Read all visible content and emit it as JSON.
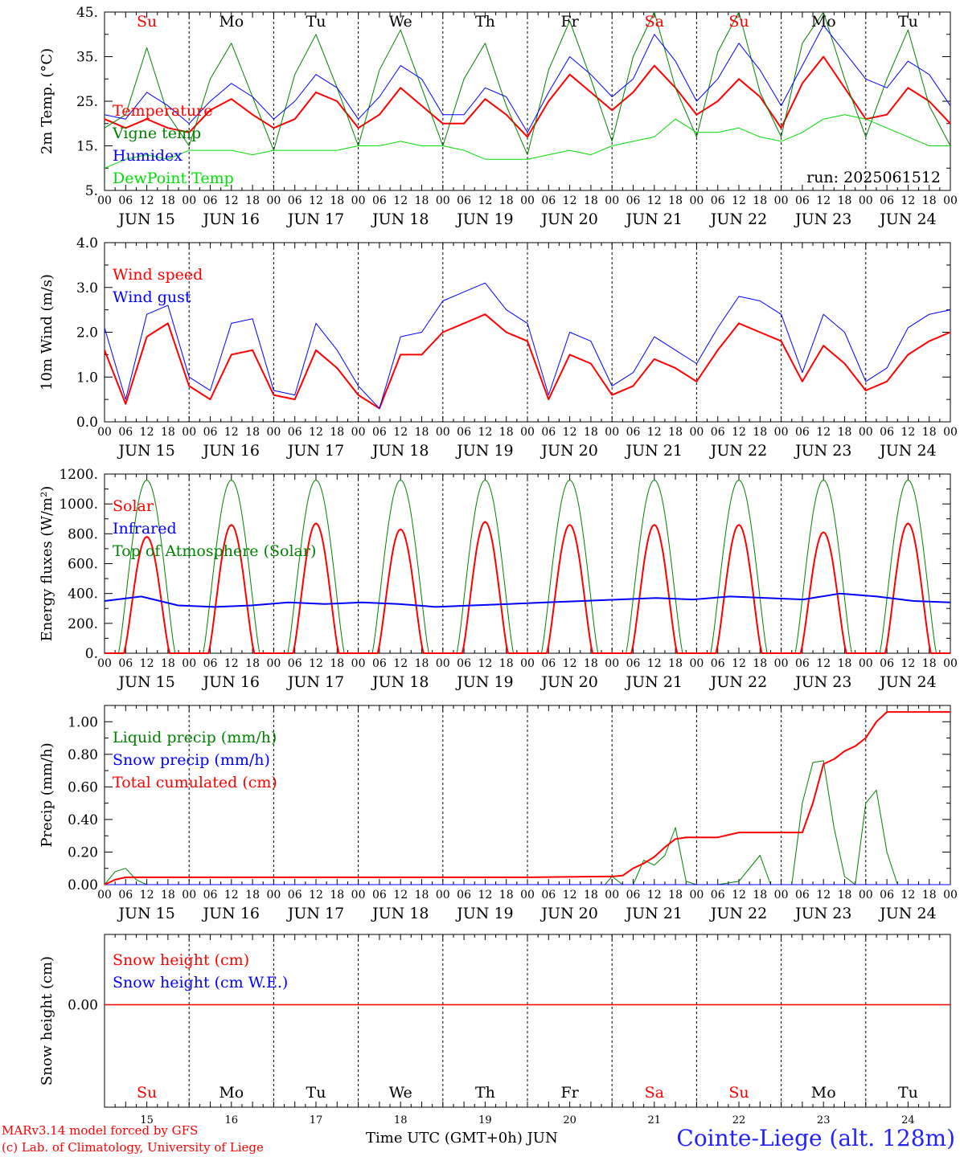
{
  "footer": {
    "model": "MARv3.14 model forced by GFS",
    "lab": "(c) Lab. of Climatology, University of Liege",
    "xlabel": "Time UTC (GMT+0h) JUN",
    "station": "Cointe-Liege (alt. 128m)"
  },
  "colors": {
    "red": "#ff0000",
    "green": "#008000",
    "blue": "#0000ff",
    "lime": "#00dd00",
    "grid": "#000000"
  },
  "chart_data": [
    {
      "type": "line",
      "ylabel": "2m Temp. (°C)",
      "ylim": [
        5,
        45
      ],
      "yticks": [
        "5.",
        "15.",
        "25.",
        "35.",
        "45."
      ],
      "annotation": "run: 2025061512",
      "days_top": [
        {
          "label": "Su",
          "color": "red"
        },
        {
          "label": "Mo",
          "color": "black"
        },
        {
          "label": "Tu",
          "color": "black"
        },
        {
          "label": "We",
          "color": "black"
        },
        {
          "label": "Th",
          "color": "black"
        },
        {
          "label": "Fr",
          "color": "black"
        },
        {
          "label": "Sa",
          "color": "red"
        },
        {
          "label": "Su",
          "color": "red"
        },
        {
          "label": "Mo",
          "color": "black"
        },
        {
          "label": "Tu",
          "color": "black"
        }
      ],
      "x_hours": [
        0,
        6,
        12,
        18,
        24,
        30,
        36,
        42,
        48,
        54,
        60,
        66,
        72,
        78,
        84,
        90,
        96,
        102,
        108,
        114,
        120,
        126,
        132,
        138,
        144,
        150,
        156,
        162,
        168,
        174,
        180,
        186,
        192,
        198,
        204,
        210,
        216,
        222,
        228,
        234,
        240
      ],
      "series": [
        {
          "name": "Temperature",
          "color": "red",
          "width": 2,
          "values": [
            21,
            19,
            21,
            19,
            18,
            23,
            25.5,
            22,
            19,
            21,
            27,
            25,
            19,
            22,
            28,
            24,
            20,
            20,
            25.5,
            22,
            17,
            25,
            31,
            27,
            23,
            27,
            33,
            28,
            22,
            25,
            30,
            26,
            19,
            29,
            35,
            28,
            21,
            22,
            28,
            25,
            20
          ]
        },
        {
          "name": "Vigne temp",
          "color": "green",
          "width": 1,
          "values": [
            19,
            22,
            37,
            22,
            15,
            30,
            38,
            26,
            14,
            31,
            40,
            28,
            15,
            32,
            41,
            28,
            15,
            30,
            38,
            24,
            13,
            32,
            43,
            30,
            16,
            35,
            46,
            28,
            17,
            36,
            47,
            27,
            17,
            38,
            47,
            30,
            17,
            30,
            41,
            24,
            15
          ]
        },
        {
          "name": "Humidex",
          "color": "blue",
          "width": 1,
          "values": [
            22,
            21,
            27,
            24,
            20,
            25,
            29,
            26,
            21,
            25,
            31,
            28,
            21,
            26,
            33,
            30,
            22,
            22,
            28,
            26,
            18,
            27,
            35,
            31,
            26,
            30,
            40,
            34,
            25,
            30,
            38,
            32,
            24,
            33,
            42,
            36,
            30,
            28,
            34,
            31,
            24
          ]
        },
        {
          "name": "DewPoint Temp",
          "color": "lime",
          "width": 1,
          "values": [
            10,
            12,
            13,
            12,
            14,
            14,
            14,
            13,
            14,
            14,
            14,
            14,
            15,
            15,
            16,
            15,
            15,
            14,
            12,
            12,
            12,
            13,
            14,
            13,
            15,
            16,
            17,
            21,
            18,
            18,
            19,
            17,
            16,
            18,
            21,
            22,
            21,
            19,
            17,
            15,
            15
          ]
        }
      ]
    },
    {
      "type": "line",
      "ylabel": "10m Wind (m/s)",
      "ylim": [
        0,
        4
      ],
      "yticks": [
        "0.0",
        "1.0",
        "2.0",
        "3.0",
        "4.0"
      ],
      "x_hours": [
        0,
        6,
        12,
        18,
        24,
        30,
        36,
        42,
        48,
        54,
        60,
        66,
        72,
        78,
        84,
        90,
        96,
        102,
        108,
        114,
        120,
        126,
        132,
        138,
        144,
        150,
        156,
        162,
        168,
        174,
        180,
        186,
        192,
        198,
        204,
        210,
        216,
        222,
        228,
        234,
        240
      ],
      "series": [
        {
          "name": "Wind speed",
          "color": "red",
          "width": 2,
          "values": [
            1.6,
            0.4,
            1.9,
            2.2,
            0.8,
            0.5,
            1.5,
            1.6,
            0.6,
            0.5,
            1.6,
            1.2,
            0.6,
            0.3,
            1.5,
            1.5,
            2.0,
            2.2,
            2.4,
            2.0,
            1.8,
            0.5,
            1.5,
            1.3,
            0.6,
            0.8,
            1.4,
            1.2,
            0.9,
            1.6,
            2.2,
            2.0,
            1.8,
            0.9,
            1.7,
            1.3,
            0.7,
            0.9,
            1.5,
            1.8,
            2.0
          ]
        },
        {
          "name": "Wind gust",
          "color": "blue",
          "width": 1,
          "values": [
            2.1,
            0.5,
            2.4,
            2.6,
            1.0,
            0.7,
            2.2,
            2.3,
            0.7,
            0.6,
            2.2,
            1.6,
            0.8,
            0.3,
            1.9,
            2.0,
            2.7,
            2.9,
            3.1,
            2.5,
            2.2,
            0.6,
            2.0,
            1.8,
            0.8,
            1.1,
            1.9,
            1.6,
            1.3,
            2.1,
            2.8,
            2.7,
            2.4,
            1.1,
            2.4,
            2.0,
            0.9,
            1.2,
            2.1,
            2.4,
            2.5
          ]
        }
      ]
    },
    {
      "type": "line",
      "ylabel": "Energy fluxes (W/m²)",
      "ylim": [
        0,
        1200
      ],
      "yticks": [
        "0.",
        "200.",
        "400.",
        "600.",
        "800.",
        "1000.",
        "1200."
      ],
      "x_hours_note": "computed",
      "solar_peaks": [
        780,
        860,
        870,
        830,
        880,
        860,
        860,
        860,
        810,
        870
      ],
      "toa_peak": 1160,
      "infrared": [
        350,
        380,
        320,
        310,
        320,
        340,
        330,
        340,
        330,
        310,
        320,
        330,
        340,
        350,
        360,
        370,
        360,
        380,
        370,
        360,
        400,
        380,
        350,
        340
      ],
      "series": [
        {
          "name": "Solar",
          "color": "red"
        },
        {
          "name": "Infrared",
          "color": "blue"
        },
        {
          "name": "Top of Atmosphere (Solar)",
          "color": "green"
        }
      ]
    },
    {
      "type": "line",
      "ylabel": "Precip (mm/h)",
      "ylim": [
        0,
        1.1
      ],
      "yticks": [
        "0.00",
        "0.20",
        "0.40",
        "0.60",
        "0.80",
        "1.00"
      ],
      "x_hours": [
        0,
        3,
        6,
        9,
        12,
        24,
        48,
        72,
        96,
        120,
        142,
        144,
        147,
        150,
        153,
        156,
        159,
        162,
        165,
        168,
        171,
        174,
        180,
        186,
        189,
        192,
        195,
        198,
        201,
        204,
        207,
        210,
        213,
        216,
        219,
        222,
        225,
        228,
        231,
        234,
        237,
        240
      ],
      "series": [
        {
          "name": "Liquid precip (mm/h)",
          "color": "green",
          "width": 1,
          "values": [
            0,
            0.08,
            0.1,
            0.03,
            0,
            0,
            0,
            0,
            0,
            0,
            0,
            0.05,
            0,
            0,
            0.15,
            0.12,
            0.18,
            0.35,
            0.02,
            0,
            0,
            0,
            0.02,
            0.18,
            0,
            0,
            0,
            0.5,
            0.75,
            0.76,
            0.35,
            0.05,
            0,
            0.5,
            0.58,
            0.2,
            0,
            0,
            0,
            0,
            0,
            0
          ]
        },
        {
          "name": "Snow precip (mm/h)",
          "color": "blue",
          "width": 1,
          "values": [
            0,
            0,
            0,
            0,
            0,
            0,
            0,
            0,
            0,
            0,
            0,
            0,
            0,
            0,
            0,
            0,
            0,
            0,
            0,
            0,
            0,
            0,
            0,
            0,
            0,
            0,
            0,
            0,
            0,
            0,
            0,
            0,
            0,
            0,
            0,
            0,
            0,
            0,
            0,
            0,
            0,
            0
          ]
        },
        {
          "name": "Total cumulated (cm)",
          "color": "red",
          "width": 2,
          "values": [
            0,
            0.03,
            0.045,
            0.045,
            0.045,
            0.045,
            0.045,
            0.045,
            0.045,
            0.045,
            0.05,
            0.05,
            0.055,
            0.1,
            0.13,
            0.17,
            0.23,
            0.28,
            0.29,
            0.29,
            0.29,
            0.29,
            0.32,
            0.32,
            0.32,
            0.32,
            0.32,
            0.32,
            0.5,
            0.74,
            0.77,
            0.82,
            0.85,
            0.9,
            1.0,
            1.06,
            1.06,
            1.06,
            1.06,
            1.06,
            1.06,
            1.06
          ]
        }
      ]
    },
    {
      "type": "line",
      "ylabel": "Snow height (cm)",
      "yticks": [
        "0.00"
      ],
      "series": [
        {
          "name": "Snow height (cm)",
          "color": "red",
          "values": [
            0,
            0
          ]
        },
        {
          "name": "Snow height (cm W.E.)",
          "color": "blue",
          "values": [
            0,
            0
          ]
        }
      ],
      "day_numbers": [
        "15",
        "16",
        "17",
        "18",
        "19",
        "20",
        "21",
        "22",
        "23",
        "24"
      ]
    }
  ],
  "xaxis": {
    "hour_ticks": [
      "00",
      "06",
      "12",
      "18"
    ],
    "end_tick": "00",
    "days": [
      "JUN 15",
      "JUN 16",
      "JUN 17",
      "JUN 18",
      "JUN 19",
      "JUN 20",
      "JUN 21",
      "JUN 22",
      "JUN 23",
      "JUN 24"
    ]
  }
}
